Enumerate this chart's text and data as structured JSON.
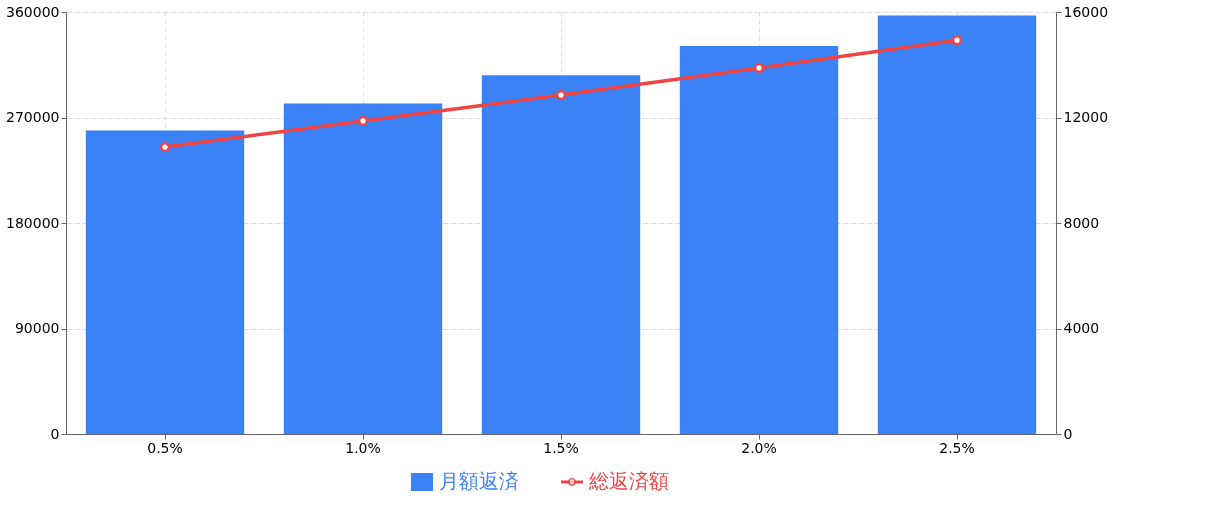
{
  "chart_data": {
    "type": "bar",
    "categories": [
      "0.5%",
      "1.0%",
      "1.5%",
      "2.0%",
      "2.5%"
    ],
    "series": [
      {
        "name": "月額返済",
        "color": "#3b82f6",
        "values": [
          259000,
          282000,
          306000,
          331000,
          357000
        ]
      },
      {
        "name": "総返済額",
        "type": "line",
        "axis": "y2",
        "color": "#ef4444",
        "values": [
          10880,
          11870,
          12850,
          13880,
          14930
        ]
      }
    ],
    "ylim": [
      0,
      360000
    ],
    "yticks": [
      0,
      90000,
      180000,
      270000,
      360000
    ],
    "y2lim": [
      0,
      16000
    ],
    "y2ticks": [
      0,
      4000,
      8000,
      12000,
      16000
    ],
    "grid": true,
    "legend": "bottom",
    "marker": "circle",
    "line_style": "solid"
  }
}
